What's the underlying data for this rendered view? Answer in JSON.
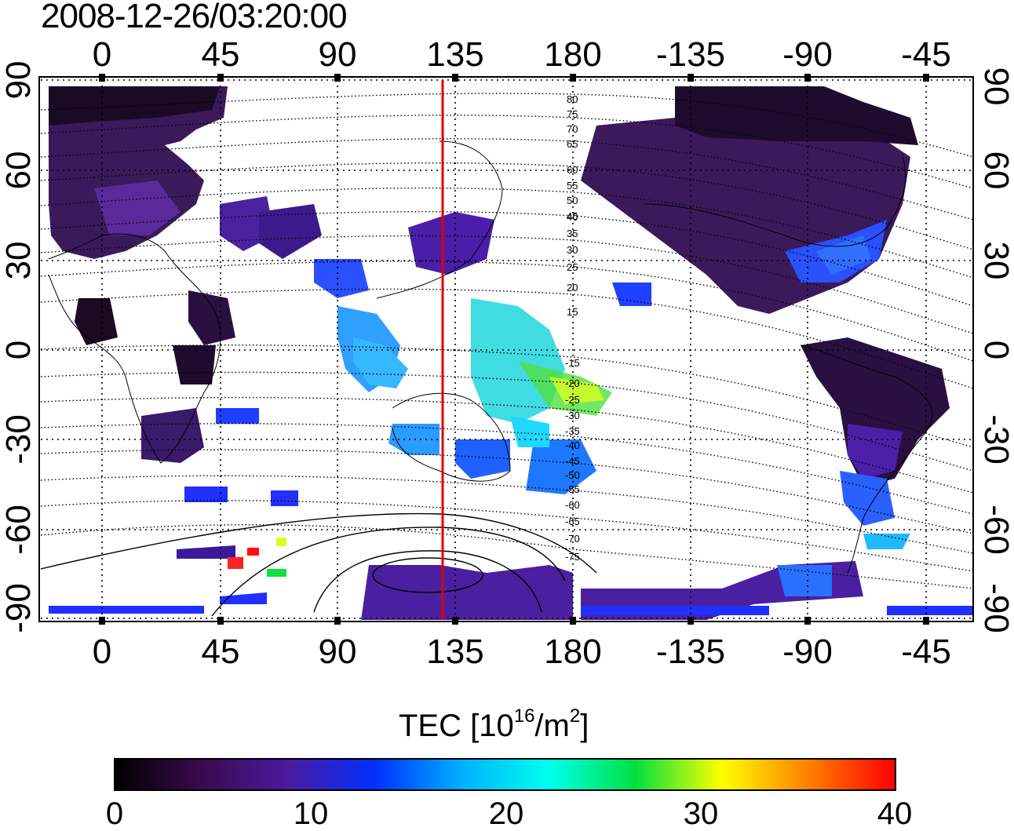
{
  "title": "2008-12-26/03:20:00",
  "map": {
    "top_lon_labels": [
      "0",
      "45",
      "90",
      "135",
      "180",
      "-135",
      "-90",
      "-45"
    ],
    "bottom_lon_labels": [
      "0",
      "45",
      "90",
      "135",
      "180",
      "-135",
      "-90",
      "-45"
    ],
    "left_lat_labels": [
      "90",
      "60",
      "30",
      "0",
      "-30",
      "-60",
      "-90"
    ],
    "right_lat_labels": [
      "90",
      "60",
      "30",
      "0",
      "-30",
      "-60",
      "-90"
    ],
    "contour_labels_north": [
      "80",
      "75",
      "70",
      "65",
      "60",
      "55",
      "50",
      "45",
      "40",
      "35",
      "30",
      "25",
      "20",
      "15"
    ],
    "contour_labels_south": [
      "-15",
      "-20",
      "-25",
      "-30",
      "-35",
      "-40",
      "-45",
      "-50",
      "-55",
      "-60",
      "-65",
      "-70",
      "-75"
    ],
    "meridian_line_lon": 130,
    "meridian_color": "#e00000"
  },
  "colorbar": {
    "title_prefix": "TEC  [10",
    "title_exp": "16",
    "title_mid": "/m",
    "title_exp2": "2",
    "title_suffix": "]",
    "min": 0,
    "max": 40,
    "labels": [
      "0",
      "10",
      "20",
      "30",
      "40"
    ],
    "colors": [
      "#000000",
      "#3a0a4e",
      "#4b1aa0",
      "#0030ff",
      "#00b0ff",
      "#00ffee",
      "#00e040",
      "#ffff00",
      "#ff8000",
      "#ff0000"
    ]
  }
}
